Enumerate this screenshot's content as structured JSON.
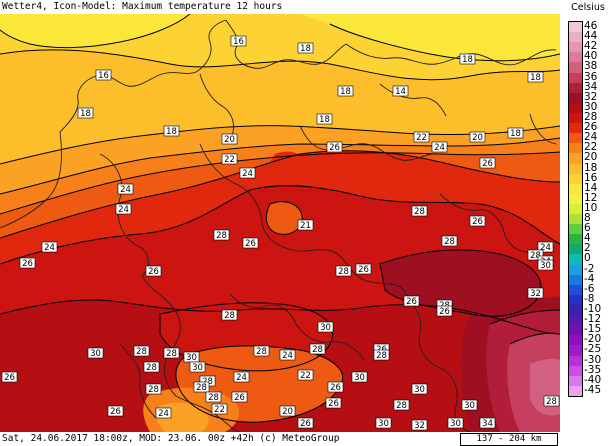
{
  "header": {
    "title": "Wetter4, Icon-Model: Maximum temperature 12 hours"
  },
  "footer": {
    "run_info": "Sat, 24.06.2017 18:00z, MOD: 23.06. 00z +42h (c) MeteoGroup",
    "scale": "137 - 204 km"
  },
  "legend": {
    "unit": "Celsius",
    "levels": [
      {
        "label": "46",
        "color": "#f2c6d8"
      },
      {
        "label": "44",
        "color": "#ecb0c6"
      },
      {
        "label": "42",
        "color": "#e596b0"
      },
      {
        "label": "40",
        "color": "#dd7b98"
      },
      {
        "label": "38",
        "color": "#d26080"
      },
      {
        "label": "36",
        "color": "#c4405e"
      },
      {
        "label": "34",
        "color": "#b21e3a"
      },
      {
        "label": "32",
        "color": "#9e0f22"
      },
      {
        "label": "30",
        "color": "#b50f14"
      },
      {
        "label": "28",
        "color": "#cc1410"
      },
      {
        "label": "26",
        "color": "#e0280e"
      },
      {
        "label": "24",
        "color": "#ee5a12"
      },
      {
        "label": "22",
        "color": "#f7801a"
      },
      {
        "label": "20",
        "color": "#fba224"
      },
      {
        "label": "18",
        "color": "#fdbe2c"
      },
      {
        "label": "16",
        "color": "#fdd233"
      },
      {
        "label": "14",
        "color": "#fbe63a"
      },
      {
        "label": "12",
        "color": "#f4f23c"
      },
      {
        "label": "10",
        "color": "#d8ee3a"
      },
      {
        "label": "8",
        "color": "#a8e23a"
      },
      {
        "label": "6",
        "color": "#62d03a"
      },
      {
        "label": "4",
        "color": "#24b842"
      },
      {
        "label": "2",
        "color": "#12a870"
      },
      {
        "label": "0",
        "color": "#14b8b8"
      },
      {
        "label": "-2",
        "color": "#18a0e0"
      },
      {
        "label": "-4",
        "color": "#1c78e8"
      },
      {
        "label": "-6",
        "color": "#1e50dc"
      },
      {
        "label": "-8",
        "color": "#2230c4"
      },
      {
        "label": "-10",
        "color": "#3a20b4"
      },
      {
        "label": "-12",
        "color": "#5818b0"
      },
      {
        "label": "-15",
        "color": "#7410b0"
      },
      {
        "label": "-20",
        "color": "#8c10c0"
      },
      {
        "label": "-25",
        "color": "#a418d0"
      },
      {
        "label": "-30",
        "color": "#b830dc"
      },
      {
        "label": "-35",
        "color": "#c850e4"
      },
      {
        "label": "-40",
        "color": "#d878ec"
      },
      {
        "label": "-45",
        "color": "#e8a4f2"
      }
    ]
  },
  "map": {
    "colors": {
      "t14": "#fbe63a",
      "t16": "#fdd233",
      "t18": "#fdbe2c",
      "t20": "#fba224",
      "t22": "#f7801a",
      "t24": "#ee5a12",
      "t26": "#e0280e",
      "t28": "#cc1410",
      "t30": "#b50f14",
      "t32": "#9e0f22",
      "t34": "#b21e3a",
      "t36": "#c4405e",
      "t38": "#d26080",
      "border": "#202020"
    },
    "labels": [
      {
        "id": "lbl-16-a",
        "text": "16"
      },
      {
        "id": "lbl-16-b",
        "text": "16"
      },
      {
        "id": "lbl-18-a",
        "text": "18"
      },
      {
        "id": "lbl-18-b",
        "text": "18"
      },
      {
        "id": "lbl-18-c",
        "text": "18"
      },
      {
        "id": "lbl-18-d",
        "text": "18"
      },
      {
        "id": "lbl-14",
        "text": "14"
      },
      {
        "id": "lbl-18-e",
        "text": "18"
      },
      {
        "id": "lbl-18-f",
        "text": "18"
      },
      {
        "id": "lbl-18-g",
        "text": "18"
      },
      {
        "id": "lbl-18-h",
        "text": "18"
      },
      {
        "id": "lbl-20-a",
        "text": "20"
      },
      {
        "id": "lbl-22-a",
        "text": "22"
      },
      {
        "id": "lbl-24-a",
        "text": "24"
      },
      {
        "id": "lbl-22-b",
        "text": "22"
      },
      {
        "id": "lbl-20-b",
        "text": "20"
      },
      {
        "id": "lbl-24-b",
        "text": "24"
      },
      {
        "id": "lbl-26-a",
        "text": "26"
      },
      {
        "id": "lbl-26-b",
        "text": "26"
      },
      {
        "id": "lbl-24-c",
        "text": "24"
      },
      {
        "id": "lbl-24-d",
        "text": "24"
      },
      {
        "id": "lbl-24-e",
        "text": "24"
      },
      {
        "id": "lbl-24-f",
        "text": "24"
      },
      {
        "id": "lbl-28-a",
        "text": "28"
      },
      {
        "id": "lbl-21",
        "text": "21"
      },
      {
        "id": "lbl-28-b",
        "text": "28"
      },
      {
        "id": "lbl-26-c",
        "text": "26"
      },
      {
        "id": "lbl-26-d",
        "text": "26"
      },
      {
        "id": "lbl-28-c",
        "text": "28"
      },
      {
        "id": "lbl-28-d",
        "text": "28"
      },
      {
        "id": "lbl-26-e",
        "text": "26"
      },
      {
        "id": "lbl-24-g",
        "text": "24"
      },
      {
        "id": "lbl-28-e",
        "text": "28"
      },
      {
        "id": "lbl-30-a",
        "text": "30"
      },
      {
        "id": "lbl-26-f",
        "text": "26"
      },
      {
        "id": "lbl-26-g",
        "text": "26"
      },
      {
        "id": "lbl-26-h",
        "text": "26"
      },
      {
        "id": "lbl-28-f",
        "text": "28"
      },
      {
        "id": "lbl-26-i",
        "text": "26"
      },
      {
        "id": "lbl-28-g",
        "text": "28"
      },
      {
        "id": "lbl-30-b",
        "text": "30"
      },
      {
        "id": "lbl-32-a",
        "text": "32"
      },
      {
        "id": "lbl-28-h",
        "text": "28"
      },
      {
        "id": "lbl-30-c",
        "text": "30"
      },
      {
        "id": "lbl-28-i",
        "text": "28"
      },
      {
        "id": "lbl-28-j",
        "text": "28"
      },
      {
        "id": "lbl-30-d",
        "text": "30"
      },
      {
        "id": "lbl-28-k",
        "text": "28"
      },
      {
        "id": "lbl-26-j",
        "text": "26"
      },
      {
        "id": "lbl-28-l",
        "text": "28"
      },
      {
        "id": "lbl-28-m",
        "text": "28"
      },
      {
        "id": "lbl-30-e",
        "text": "30"
      },
      {
        "id": "lbl-24-h",
        "text": "24"
      },
      {
        "id": "lbl-28-n",
        "text": "28"
      },
      {
        "id": "lbl-30-f",
        "text": "30"
      },
      {
        "id": "lbl-24-i",
        "text": "24"
      },
      {
        "id": "lbl-26-k",
        "text": "26"
      },
      {
        "id": "lbl-22-c",
        "text": "22"
      },
      {
        "id": "lbl-28-o",
        "text": "28"
      },
      {
        "id": "lbl-28-p",
        "text": "28"
      },
      {
        "id": "lbl-26-l",
        "text": "26"
      },
      {
        "id": "lbl-28-q",
        "text": "28"
      },
      {
        "id": "lbl-30-g",
        "text": "30"
      },
      {
        "id": "lbl-26-m",
        "text": "26"
      },
      {
        "id": "lbl-26-n",
        "text": "26"
      },
      {
        "id": "lbl-22-d",
        "text": "22"
      },
      {
        "id": "lbl-20-c",
        "text": "20"
      },
      {
        "id": "lbl-24-j",
        "text": "24"
      },
      {
        "id": "lbl-26-o",
        "text": "26"
      },
      {
        "id": "lbl-28-r",
        "text": "28"
      },
      {
        "id": "lbl-30-h",
        "text": "30"
      },
      {
        "id": "lbl-28-s",
        "text": "28"
      },
      {
        "id": "lbl-32-b",
        "text": "32"
      },
      {
        "id": "lbl-30-i",
        "text": "30"
      },
      {
        "id": "lbl-34",
        "text": "34"
      },
      {
        "id": "lbl-26-p",
        "text": "26"
      },
      {
        "id": "lbl-30-j",
        "text": "30"
      }
    ]
  }
}
